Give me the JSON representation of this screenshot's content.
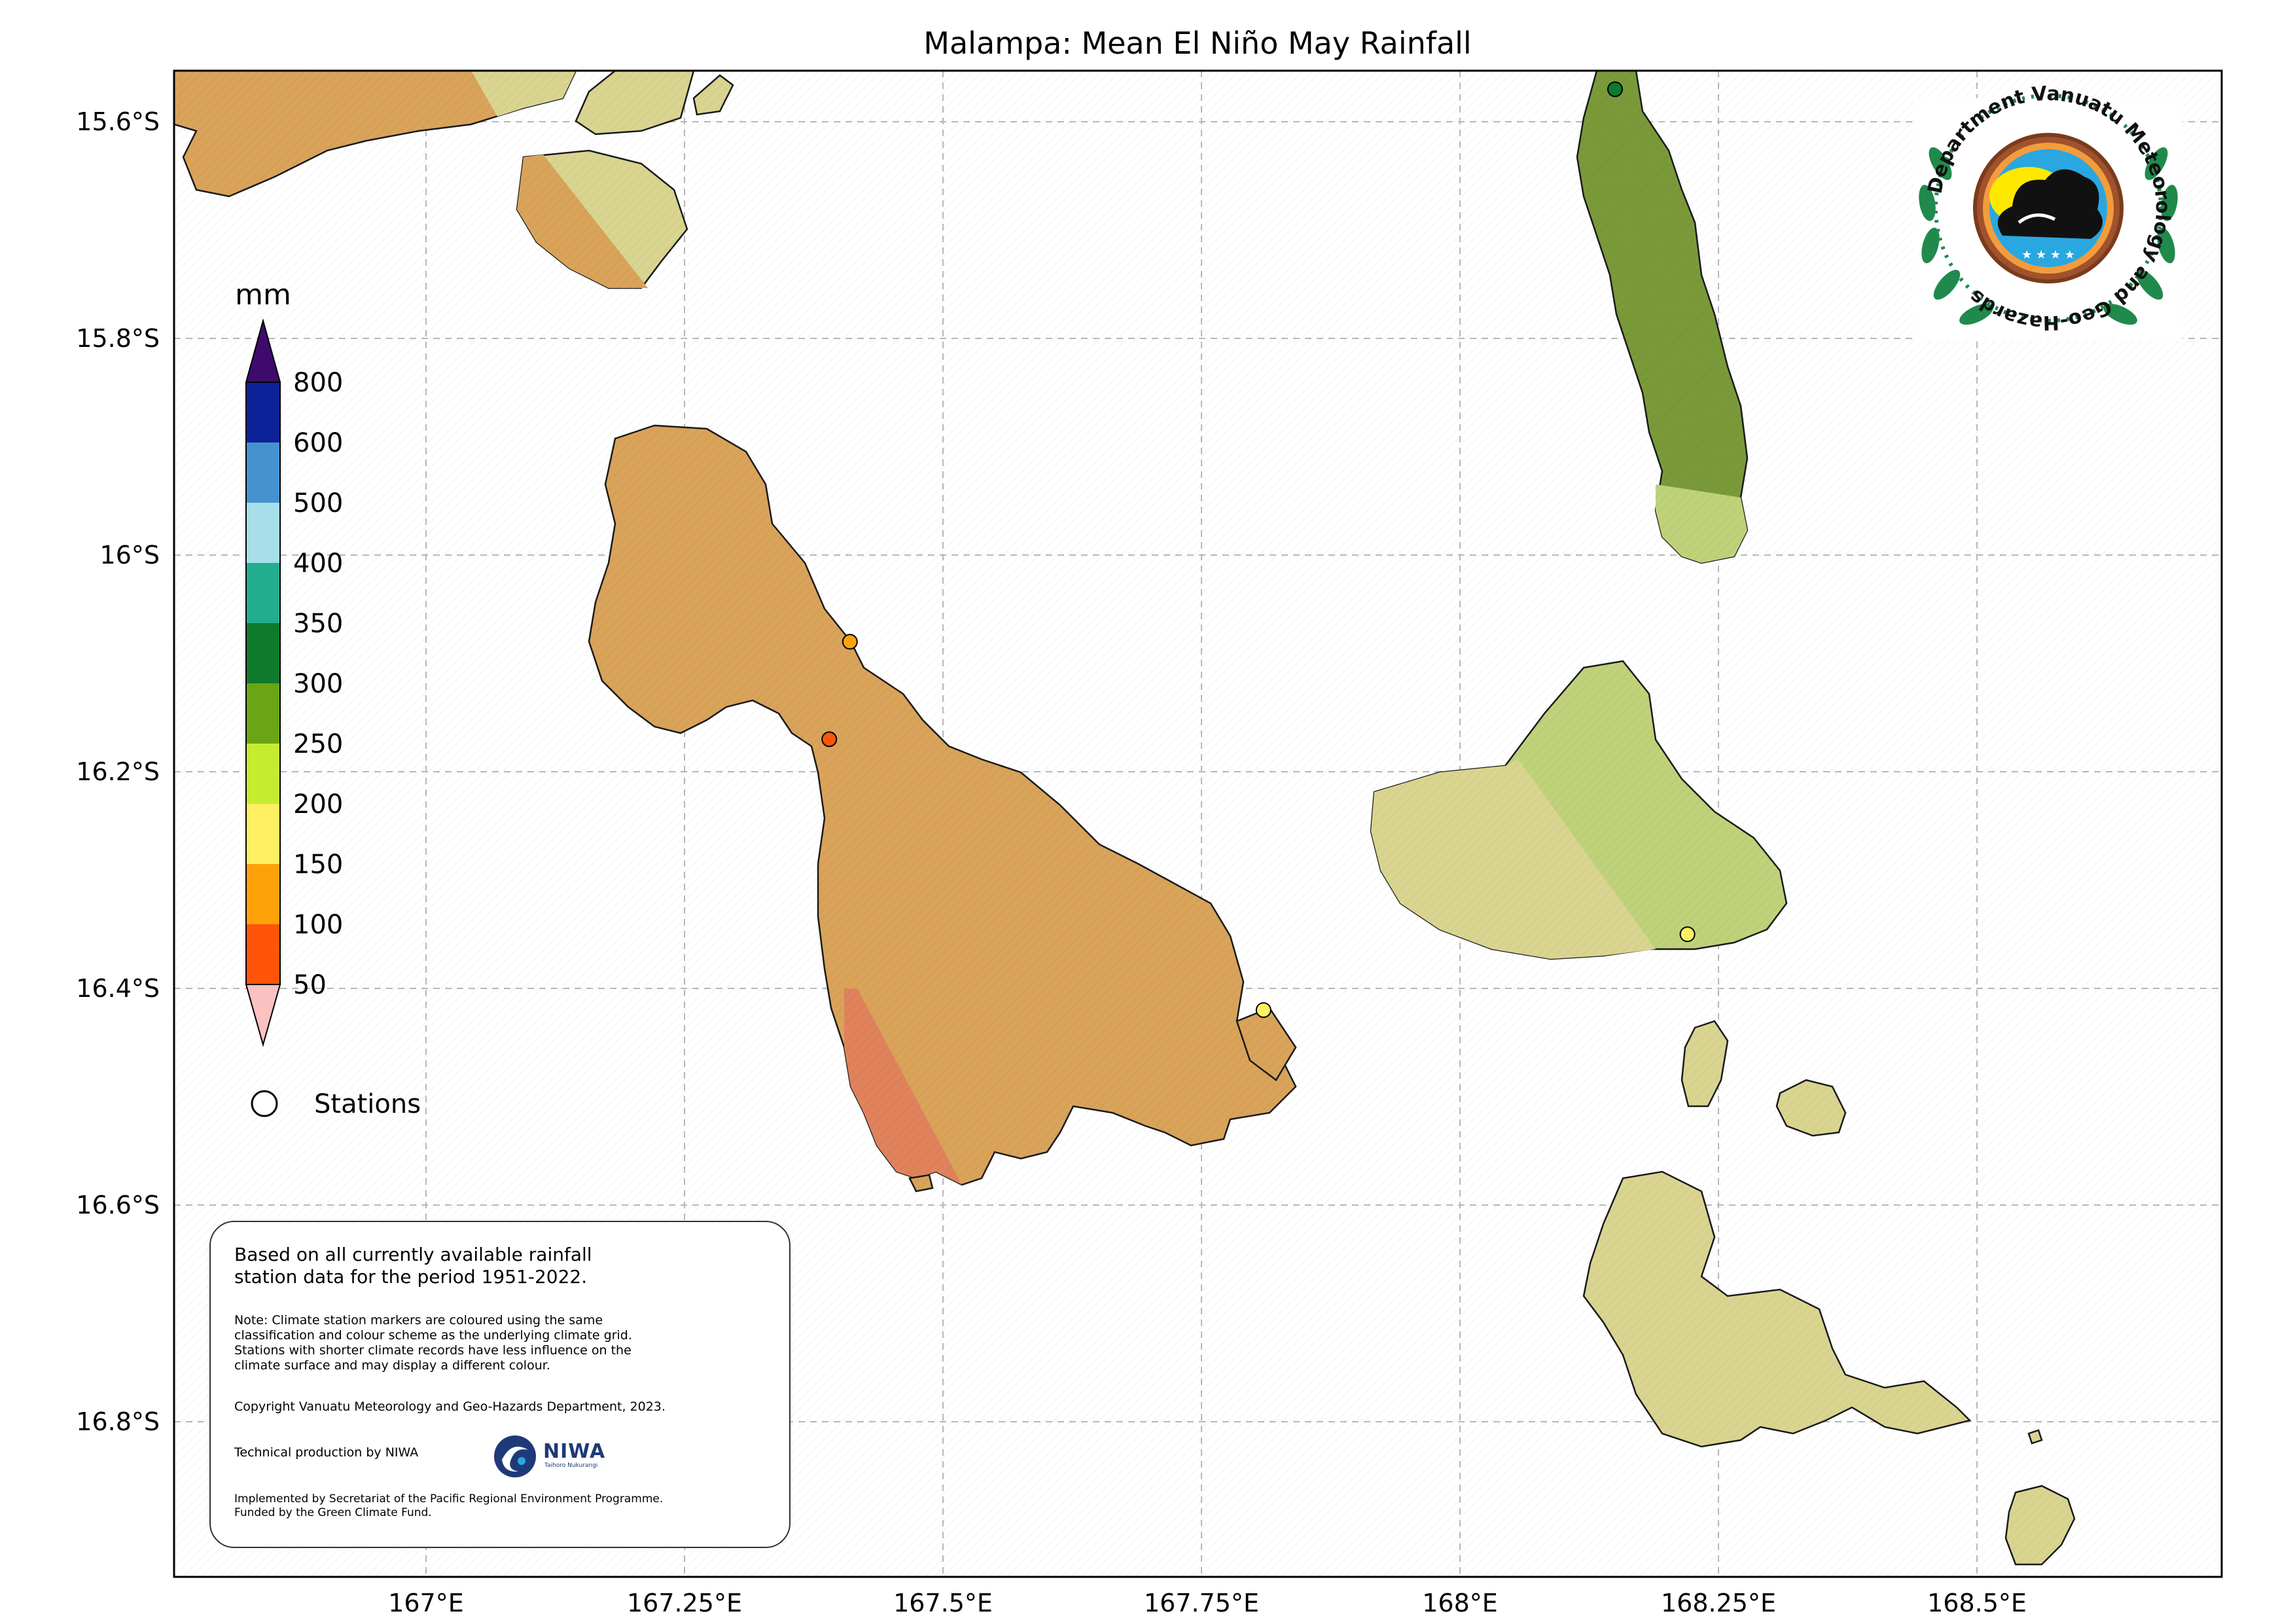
{
  "title": "Malampa: Mean El Niño May Rainfall",
  "axes": {
    "lon_ticks": [
      "167°E",
      "167.25°E",
      "167.5°E",
      "167.75°E",
      "168°E",
      "168.25°E",
      "168.5°E"
    ],
    "lat_ticks": [
      "15.6°S",
      "15.8°S",
      "16°S",
      "16.2°S",
      "16.4°S",
      "16.6°S",
      "16.8°S"
    ]
  },
  "legend": {
    "unit": "mm",
    "ticks": [
      "800",
      "600",
      "500",
      "400",
      "350",
      "300",
      "250",
      "200",
      "150",
      "100",
      "50"
    ],
    "colors": {
      "over": "#3f0a6e",
      "600-800": "#0d2299",
      "500-600": "#4592d0",
      "400-500": "#a6dfe9",
      "350-400": "#22ae8e",
      "300-350": "#0f7a2c",
      "250-300": "#6ba414",
      "200-250": "#c5ec2e",
      "150-200": "#fdf063",
      "100-150": "#ffa20a",
      "50-100": "#ff5508",
      "under": "#fcc1c1"
    },
    "stations_label": "Stations"
  },
  "logo": {
    "ring_text": "Department Vanuatu Meteorology and Geo-Hazards"
  },
  "notes": {
    "main": [
      "Based on all currently available rainfall",
      "station data for the period 1951-2022."
    ],
    "note": [
      "Note: Climate station markers are coloured using the same",
      "classification and colour scheme as the underlying climate grid.",
      "Stations with shorter climate records have less influence on the",
      "climate surface and may display a different colour."
    ],
    "copyright": "Copyright Vanuatu Meteorology and Geo-Hazards Department, 2023.",
    "technical": "Technical production by NIWA",
    "niwa_logo_text": "NIWA",
    "niwa_sub": "Taihoro Nukurangi",
    "implemented": [
      "Implemented by Secretariat of the Pacific Regional Environment Programme.",
      "Funded by the Green Climate Fund."
    ]
  },
  "stations": [
    {
      "lon": 168.15,
      "lat": -15.57,
      "color": "#0f7a2c"
    },
    {
      "lon": 167.41,
      "lat": -16.08,
      "color": "#ffa20a"
    },
    {
      "lon": 167.39,
      "lat": -16.17,
      "color": "#ff5508"
    },
    {
      "lon": 167.81,
      "lat": -16.42,
      "color": "#fdf063"
    },
    {
      "lon": 168.22,
      "lat": -16.35,
      "color": "#fdf063"
    }
  ]
}
